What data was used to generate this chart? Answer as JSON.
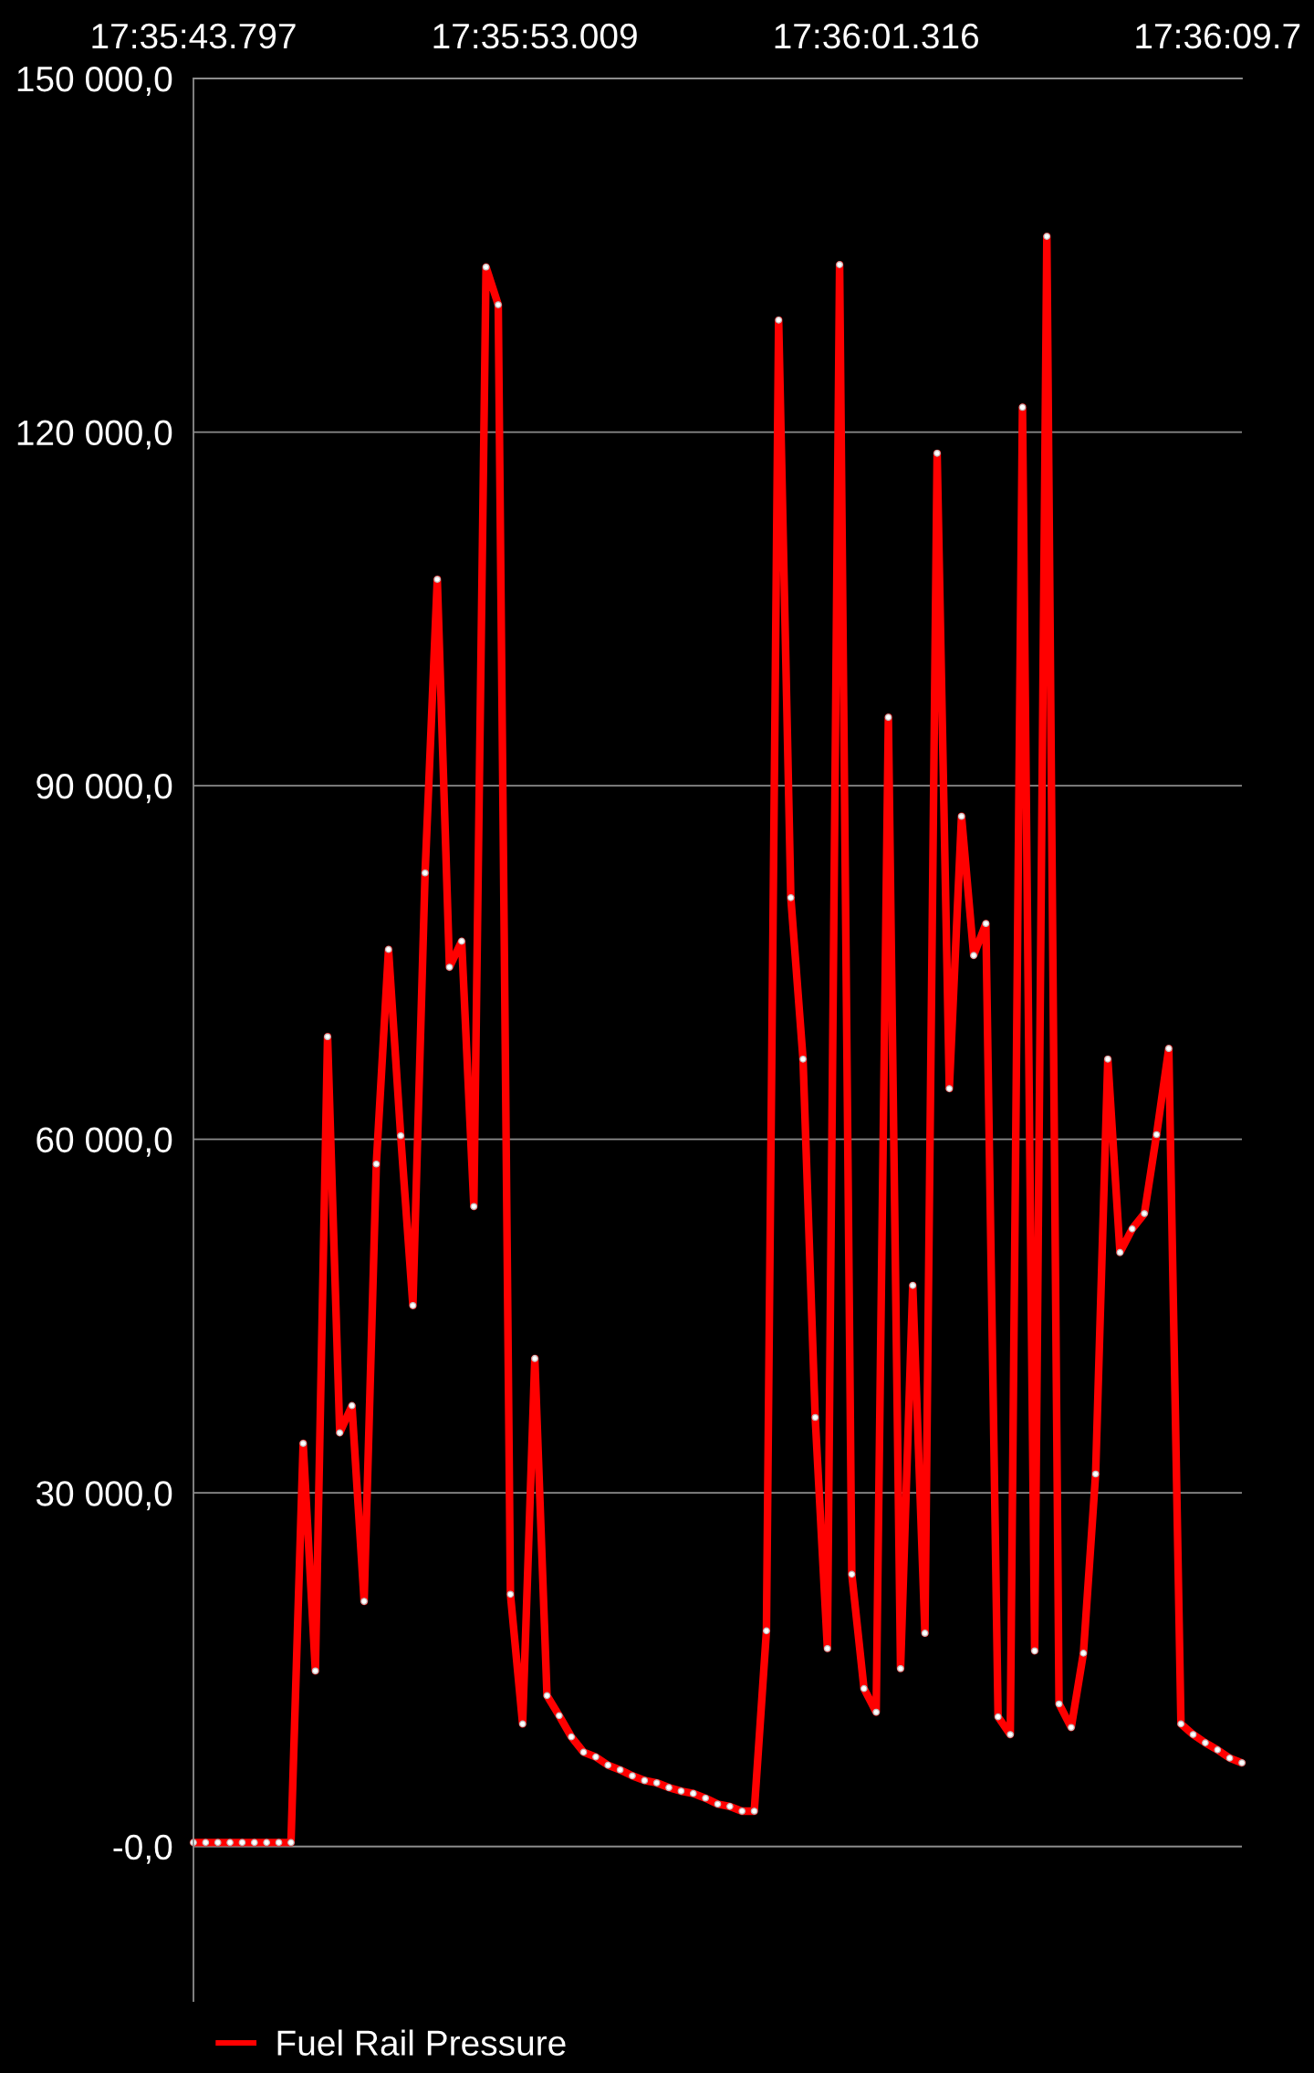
{
  "chart_data": {
    "type": "line",
    "categories": [
      "17:35:43.797",
      null,
      null,
      null,
      null,
      null,
      null,
      null,
      null,
      null,
      null,
      null,
      null,
      null,
      null,
      null,
      null,
      null,
      null,
      null,
      null,
      null,
      null,
      null,
      null,
      null,
      null,
      null,
      "17:35:53.009",
      null,
      null,
      null,
      null,
      null,
      null,
      null,
      null,
      null,
      null,
      null,
      null,
      null,
      null,
      null,
      null,
      null,
      null,
      null,
      null,
      null,
      null,
      null,
      null,
      null,
      null,
      null,
      "17:36:01.316",
      null,
      null,
      null,
      null,
      null,
      null,
      null,
      null,
      null,
      null,
      null,
      null,
      null,
      null,
      null,
      null,
      null,
      null,
      null,
      null,
      null,
      null,
      null,
      null,
      null,
      null,
      null,
      "17:36:09.7",
      null,
      null
    ],
    "series": [
      {
        "name": "Fuel Rail Pressure",
        "color": "#ff0000",
        "values": [
          340,
          340,
          340,
          340,
          340,
          340,
          340,
          340,
          340,
          34200,
          14900,
          68700,
          35100,
          37400,
          20800,
          57900,
          76100,
          60300,
          45900,
          82600,
          107500,
          74600,
          76800,
          54300,
          134000,
          130800,
          21400,
          10400,
          41400,
          12800,
          11100,
          9300,
          8000,
          7600,
          6900,
          6500,
          6000,
          5600,
          5400,
          5000,
          4700,
          4500,
          4100,
          3600,
          3400,
          3000,
          3000,
          18300,
          129500,
          80500,
          66800,
          36400,
          16800,
          134200,
          23100,
          13400,
          11400,
          95800,
          15100,
          47600,
          18100,
          118200,
          64300,
          87400,
          75600,
          78300,
          11000,
          9500,
          122100,
          16600,
          136600,
          12100,
          10100,
          16400,
          31600,
          66800,
          50400,
          52400,
          53700,
          60400,
          67700,
          10400,
          9500,
          8800,
          8200,
          7500,
          7100
        ]
      }
    ],
    "ylim": [
      -13100,
      150000
    ],
    "yticks": [
      {
        "value": 0,
        "label": "-0,0"
      },
      {
        "value": 30000,
        "label": "30 000,0"
      },
      {
        "value": 60000,
        "label": "60 000,0"
      },
      {
        "value": 90000,
        "label": "90 000,0"
      },
      {
        "value": 120000,
        "label": "120 000,0"
      },
      {
        "value": 150000,
        "label": "150 000,0"
      }
    ],
    "grid": "y",
    "legend": "bottom left",
    "marker": "circle",
    "line_style": "solid"
  }
}
